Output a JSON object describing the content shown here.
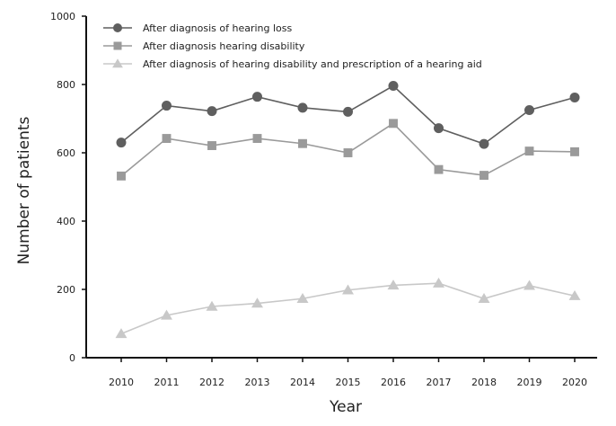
{
  "chart_data": {
    "type": "line",
    "title": "",
    "xlabel": "Year",
    "ylabel": "Number of patients",
    "x": [
      "2010",
      "2011",
      "2012",
      "2013",
      "2014",
      "2015",
      "2016",
      "2017",
      "2018",
      "2019",
      "2020"
    ],
    "ylim": [
      0,
      1000
    ],
    "yticks": [
      "0",
      "200",
      "400",
      "600",
      "800",
      "1000"
    ],
    "grid": false,
    "legend_position": "top-left",
    "series": [
      {
        "name": "After diagnosis of hearing loss",
        "marker": "circle",
        "color": "#5f5f5f",
        "values": [
          630,
          738,
          722,
          764,
          732,
          720,
          796,
          672,
          626,
          725,
          762
        ]
      },
      {
        "name": "After diagnosis hearing disability",
        "marker": "square",
        "color": "#9a9a9a",
        "values": [
          532,
          642,
          621,
          642,
          627,
          600,
          686,
          551,
          534,
          605,
          603
        ]
      },
      {
        "name": "After diagnosis of hearing disability and prescription of a hearing aid",
        "marker": "triangle",
        "color": "#c8c8c8",
        "values": [
          70,
          124,
          150,
          159,
          173,
          198,
          212,
          218,
          173,
          211,
          181
        ]
      }
    ]
  }
}
